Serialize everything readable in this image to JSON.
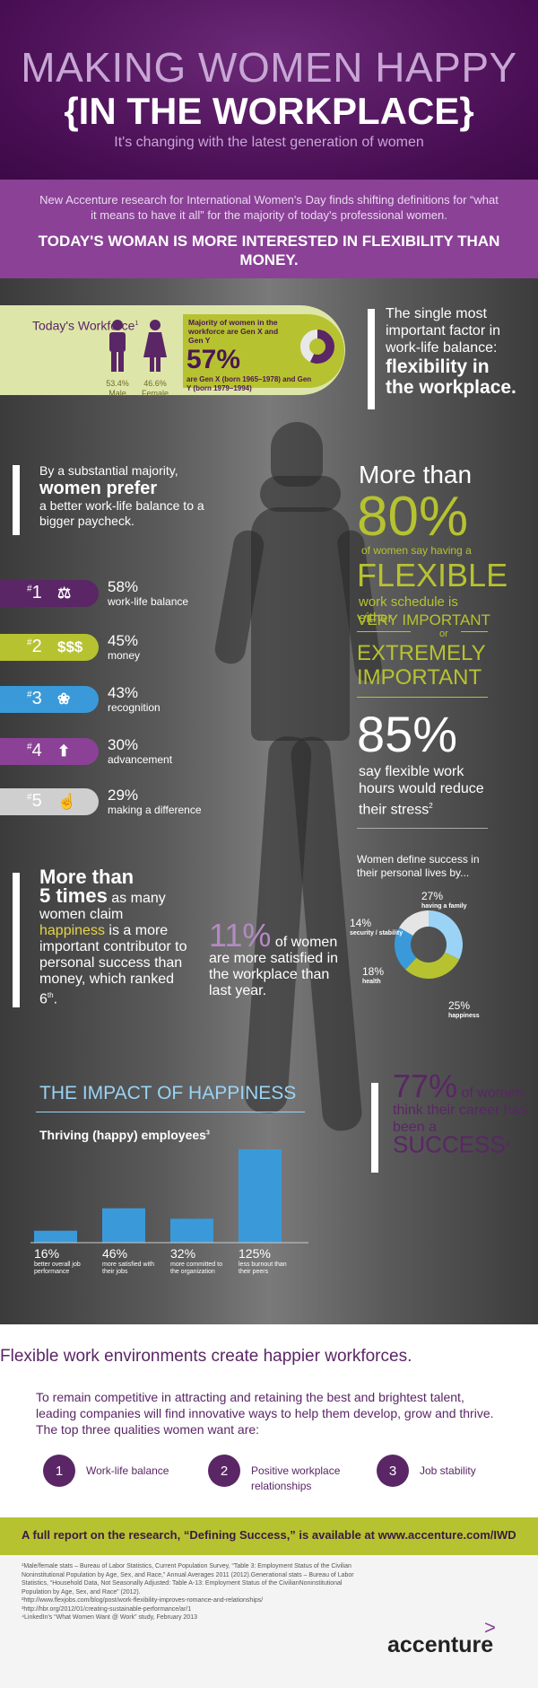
{
  "header": {
    "title_line1": "MAKING WOMEN HAPPY",
    "title_line2": "{IN THE WORKPLACE}",
    "subtitle": "It's changing with the latest generation of women"
  },
  "intro": {
    "text": "New Accenture research for International Women's Day finds shifting definitions for “what it means to have it all” for the majority of today's professional women.",
    "headline": "TODAY'S WOMAN IS MORE INTERESTED IN FLEXIBILITY THAN MONEY."
  },
  "workforce": {
    "label": "Today's Workforce",
    "footnote": "1",
    "male_pct": "53.4%",
    "male_label": "Male",
    "female_pct": "46.6%",
    "female_label": "Female",
    "majority_text": "Majority of women in the workforce are Gen X and Gen Y",
    "gen_pct": "57%",
    "gen_text": "are Gen X (born 1965–1978) and Gen Y (born 1979–1994)"
  },
  "single_factor": {
    "text": "The single most important factor in work-life balance:",
    "bold": "flexibility in the workplace."
  },
  "majority": {
    "text1": "By a substantial majority,",
    "bold": "women prefer",
    "text2": "a better work-life balance to a bigger paycheck."
  },
  "ranks": [
    {
      "num": "1",
      "icon": "⚖",
      "icon_name": "scales-icon",
      "pct": "58%",
      "label": "work-life balance",
      "color": "#5a2665"
    },
    {
      "num": "2",
      "icon": "$$$",
      "icon_name": "money-icon",
      "pct": "45%",
      "label": "money",
      "color": "#b7c230"
    },
    {
      "num": "3",
      "icon": "❀",
      "icon_name": "ribbon-icon",
      "pct": "43%",
      "label": "recognition",
      "color": "#3a9ad9"
    },
    {
      "num": "4",
      "icon": "⬆",
      "icon_name": "stairs-icon",
      "pct": "30%",
      "label": "advancement",
      "color": "#8a4196"
    },
    {
      "num": "5",
      "icon": "☝",
      "icon_name": "hand-icon",
      "pct": "29%",
      "label": "making a difference",
      "color": "#cfcfcf"
    }
  ],
  "flexible": {
    "more_than": "More than",
    "pct": "80%",
    "caption": "of women say having a",
    "flexible": "FLEXIBLE",
    "work_schedule": "work schedule is either",
    "very_important": "VERY IMPORTANT",
    "or": "or",
    "extremely": "EXTREMELY IMPORTANT",
    "stress_pct": "85%",
    "stress_text": "say flexible work hours would reduce their stress",
    "stress_note": "2"
  },
  "success_def": {
    "title": "Women define success in their personal lives by...",
    "chart_data": {
      "type": "pie",
      "categories": [
        "having a family",
        "happiness",
        "health",
        "security / stability"
      ],
      "values": [
        27,
        25,
        18,
        14
      ],
      "colors": [
        "#9ad3f5",
        "#b7c230",
        "#3a9ad9",
        "#e5e5e5"
      ]
    },
    "labels": [
      {
        "pct": "27%",
        "name": "having a family"
      },
      {
        "pct": "25%",
        "name": "happiness"
      },
      {
        "pct": "18%",
        "name": "health"
      },
      {
        "pct": "14%",
        "name": "security / stability"
      }
    ]
  },
  "five_times": {
    "line1": "More than",
    "bold": "5 times",
    "line2": "as many women claim",
    "happiness": "happiness",
    "line3": "is a more important contributor to personal success than money, which ranked 6",
    "sup": "th",
    "end": "."
  },
  "eleven": {
    "pct": "11%",
    "text": "of women are more satisfied in the workplace than last year."
  },
  "impact": {
    "title": "THE IMPACT OF HAPPINESS",
    "subtitle": "Thriving (happy) employees",
    "note": "3",
    "chart_data": {
      "type": "bar",
      "categories": [
        "better overall job performance",
        "more satisfied with their jobs",
        "more committed to the organization",
        "less burnout than their peers"
      ],
      "values": [
        16,
        46,
        32,
        125
      ],
      "labels": [
        "16%",
        "46%",
        "32%",
        "125%"
      ],
      "color": "#3a9ad9"
    }
  },
  "career": {
    "pct": "77%",
    "text": "of women think their career has been a",
    "success": "SUCCESS",
    "note": "4"
  },
  "bottom": {
    "headline": "Flexible work environments create happier workforces.",
    "text": "To remain competitive in attracting and retaining the best and brightest talent, leading companies will find innovative ways to help them develop, grow and thrive. The top three qualities women want are:",
    "qualities": [
      {
        "num": "1",
        "label": "Work-life balance"
      },
      {
        "num": "2",
        "label": "Positive workplace relationships"
      },
      {
        "num": "3",
        "label": "Job stability"
      }
    ],
    "report": "A full report on the research, “Defining Success,” is available at www.accenture.com/IWD"
  },
  "footnotes": [
    "¹Male/female stats – Bureau of Labor Statistics, Current Population Survey, “Table 3: Employment Status of the Civilian Noninstitutional Population by Age, Sex, and Race,” Annual Averages 2011 (2012).Generational stats – Bureau of Labor Statistics, “Household Data, Not Seasonally Adjusted: Table A-13: Employment Status of the CivilianNoninstitutional Population by Age, Sex, and Race” (2012).",
    "²http://www.flexjobs.com/blog/post/work-flexibility-improves-romance-and-relationships/",
    "³http://hbr.org/2012/01/creating-sustainable-performance/ar/1",
    "⁴LinkedIn's “What Women Want @ Work” study, February 2013"
  ],
  "logo": "accenture",
  "logo_mark": ">"
}
